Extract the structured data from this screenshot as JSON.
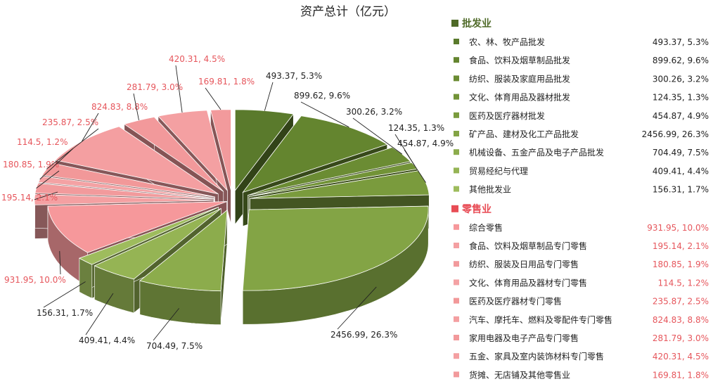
{
  "chart_data": {
    "type": "pie",
    "title": "资产总计（亿元）",
    "legend_position": "right",
    "colors": {
      "wholesale": "#6e8a3a",
      "retail": "#f4999b",
      "retail_text": "#e6565c"
    },
    "groups": [
      {
        "name": "批发业",
        "header_color": "#4f6a28",
        "slices": [
          {
            "name": "农、林、牧产品批发",
            "value": 493.37,
            "percent": 5.3,
            "label": "493.37, 5.3%",
            "color": "#5a7a2c"
          },
          {
            "name": "食品、饮料及烟草制品批发",
            "value": 899.62,
            "percent": 9.6,
            "label": "899.62, 9.6%",
            "color": "#64852f"
          },
          {
            "name": "纺织、服装及家庭用品批发",
            "value": 300.26,
            "percent": 3.2,
            "label": "300.26, 3.2%",
            "color": "#6b8c33"
          },
          {
            "name": "文化、体育用品及器材批发",
            "value": 124.35,
            "percent": 1.3,
            "label": "124.35, 1.3%",
            "color": "#729337"
          },
          {
            "name": "医药及医疗器材批发",
            "value": 454.87,
            "percent": 4.9,
            "label": "454.87, 4.9%",
            "color": "#7a9b3d"
          },
          {
            "name": "矿产品、建材及化工产品批发",
            "value": 2456.99,
            "percent": 26.3,
            "label": "2456.99, 26.3%",
            "color": "#83a445"
          },
          {
            "name": "机械设备、五金产品及电子产品批发",
            "value": 704.49,
            "percent": 7.5,
            "label": "704.49, 7.5%",
            "color": "#8cac4c"
          },
          {
            "name": "贸易经纪与代理",
            "value": 409.41,
            "percent": 4.4,
            "label": "409.41, 4.4%",
            "color": "#95b454"
          },
          {
            "name": "其他批发业",
            "value": 156.31,
            "percent": 1.7,
            "label": "156.31, 1.7%",
            "color": "#9ebc5d"
          }
        ]
      },
      {
        "name": "零售业",
        "header_color": "#e84c55",
        "slices": [
          {
            "name": "综合零售",
            "value": 931.95,
            "percent": 10.0,
            "label": "931.95, 10.0%",
            "color": "#f6989b"
          },
          {
            "name": "食品、饮料及烟草制品专门零售",
            "value": 195.14,
            "percent": 2.1,
            "label": "195.14, 2.1%",
            "color": "#f4a0a2"
          },
          {
            "name": "纺织、服装及日用品专门零售",
            "value": 180.85,
            "percent": 1.9,
            "label": "180.85, 1.9%",
            "color": "#f29a9c"
          },
          {
            "name": "文化、体育用品及器材专门零售",
            "value": 114.5,
            "percent": 1.2,
            "label": "114.5, 1.2%",
            "color": "#f4a2a4"
          },
          {
            "name": "医药及医疗器材专门零售",
            "value": 235.87,
            "percent": 2.5,
            "label": "235.87, 2.5%",
            "color": "#f29899"
          },
          {
            "name": "汽车、摩托车、燃料及零配件专门零售",
            "value": 824.83,
            "percent": 8.8,
            "label": "824.83, 8.8%",
            "color": "#f49fa1"
          },
          {
            "name": "家用电器及电子产品专门零售",
            "value": 281.79,
            "percent": 3.0,
            "label": "281.79, 3.0%",
            "color": "#f2999b"
          },
          {
            "name": "五金、家具及室内装饰材料专门零售",
            "value": 420.31,
            "percent": 4.5,
            "label": "420.31, 4.5%",
            "color": "#f4a0a2"
          },
          {
            "name": "货摊、无店铺及其他零售业",
            "value": 169.81,
            "percent": 1.8,
            "label": "169.81, 1.8%",
            "color": "#f29a9c"
          }
        ]
      }
    ]
  }
}
